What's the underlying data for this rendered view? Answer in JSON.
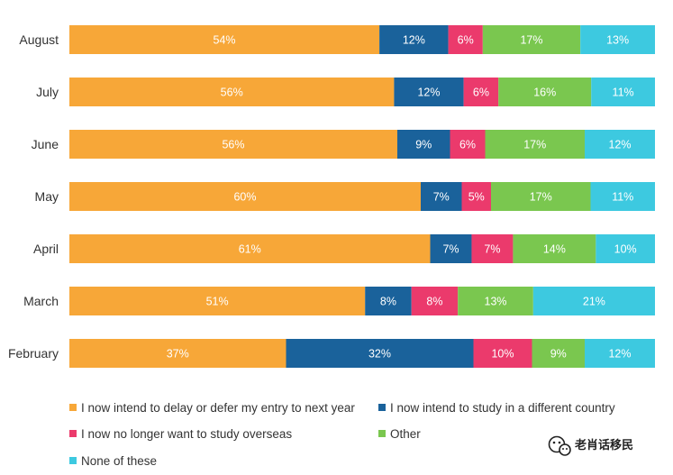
{
  "chart_data": {
    "type": "bar",
    "orientation": "horizontal",
    "stacked": true,
    "percent_stacked": true,
    "categories": [
      "August",
      "July",
      "June",
      "May",
      "April",
      "March",
      "February"
    ],
    "series": [
      {
        "name": "I now intend to delay or defer my entry to next year",
        "color": "#F7A738",
        "label_color": "#FFFFFF",
        "values": [
          54,
          56,
          56,
          60,
          61,
          51,
          37
        ],
        "labels": [
          "54%",
          "56%",
          "56%",
          "60%",
          "61%",
          "51%",
          "37%"
        ]
      },
      {
        "name": "I now intend to study in a different country",
        "color": "#1A629B",
        "label_color": "#FFFFFF",
        "values": [
          12,
          12,
          9,
          7,
          7,
          8,
          32
        ],
        "labels": [
          "12%",
          "12%",
          "9%",
          "7%",
          "7%",
          "8%",
          "32%"
        ]
      },
      {
        "name": "I now no longer want to study overseas",
        "color": "#EB3A6C",
        "label_color": "#FFFFFF",
        "values": [
          6,
          6,
          6,
          5,
          7,
          8,
          10
        ],
        "labels": [
          "6%",
          "6%",
          "6%",
          "5%",
          "7%",
          "8%",
          "10%"
        ]
      },
      {
        "name": "Other",
        "color": "#7AC74F",
        "label_color": "#FFFFFF",
        "values": [
          17,
          16,
          17,
          17,
          14,
          13,
          9
        ],
        "labels": [
          "17%",
          "16%",
          "17%",
          "17%",
          "14%",
          "13%",
          "9%"
        ]
      },
      {
        "name": "None of these",
        "color": "#3DC9E0",
        "label_color": "#FFFFFF",
        "values": [
          13,
          11,
          12,
          11,
          10,
          21,
          12
        ],
        "labels": [
          "13%",
          "11%",
          "12%",
          "11%",
          "10%",
          "21%",
          "12%"
        ]
      }
    ],
    "legend_position": "bottom",
    "grid": false
  },
  "watermark": {
    "text": "老肖话移民",
    "icon": "wechat-icon"
  }
}
